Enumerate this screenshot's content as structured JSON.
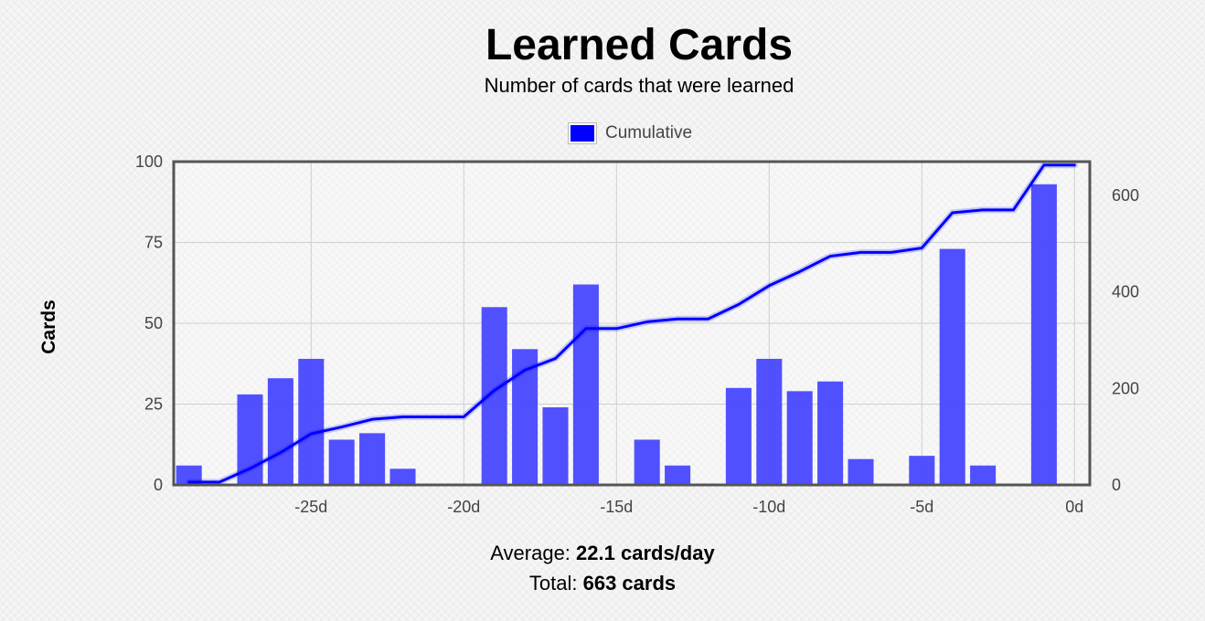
{
  "header": {
    "title": "Learned Cards",
    "subtitle": "Number of cards that were learned"
  },
  "legend": {
    "label": "Cumulative",
    "color": "#0000ff"
  },
  "footer": {
    "average_label": "Average:",
    "average_value": "22.1 cards/day",
    "total_label": "Total:",
    "total_value": "663 cards"
  },
  "chart_data": {
    "type": "bar",
    "title": "Learned Cards",
    "subtitle": "Number of cards that were learned",
    "ylabel": "Cards",
    "ylabel_right": "",
    "xlim": [
      -29.5,
      0.5
    ],
    "ylim": [
      0,
      100
    ],
    "ylim_right": [
      0,
      670
    ],
    "x_ticks": [
      -25,
      -20,
      -15,
      -10,
      -5,
      0
    ],
    "x_tick_labels": [
      "-25d",
      "-20d",
      "-15d",
      "-10d",
      "-5d",
      "0d"
    ],
    "y_ticks": [
      0,
      25,
      50,
      75,
      100
    ],
    "y_ticks_right": [
      0,
      200,
      400,
      600
    ],
    "grid": true,
    "legend_position": "top-center",
    "bar_color": "#4a4aff",
    "line_color": "#0000ff",
    "series": [
      {
        "type": "bar",
        "x": [
          -29,
          -27,
          -26,
          -25,
          -24,
          -23,
          -22,
          -19,
          -18,
          -17,
          -16,
          -14,
          -13,
          -11,
          -10,
          -9,
          -8,
          -7,
          -5,
          -4,
          -3,
          -1
        ],
        "values": [
          6,
          28,
          33,
          39,
          14,
          16,
          5,
          55,
          42,
          24,
          62,
          14,
          6,
          30,
          39,
          29,
          32,
          8,
          9,
          73,
          6,
          93
        ]
      },
      {
        "type": "line",
        "name": "Cumulative",
        "axis": "right",
        "x": [
          -29,
          -28,
          -27,
          -26,
          -25,
          -24,
          -23,
          -22,
          -21,
          -20,
          -19,
          -18,
          -17,
          -16,
          -15,
          -14,
          -13,
          -12,
          -11,
          -10,
          -9,
          -8,
          -7,
          -6,
          -5,
          -4,
          -3,
          -2,
          -1,
          0
        ],
        "values": [
          6,
          6,
          34,
          67,
          106,
          120,
          136,
          141,
          141,
          141,
          196,
          238,
          262,
          324,
          324,
          338,
          344,
          344,
          374,
          413,
          442,
          474,
          482,
          482,
          491,
          564,
          570,
          570,
          663,
          663
        ]
      }
    ]
  }
}
